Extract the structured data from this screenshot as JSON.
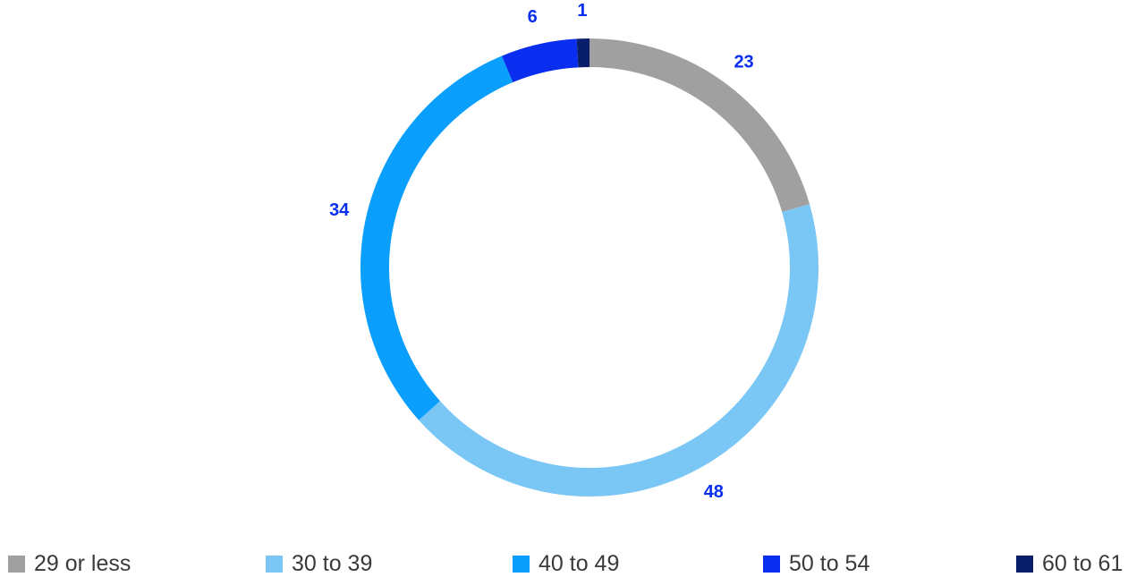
{
  "chart_data": {
    "type": "pie",
    "style": "donut",
    "title": "",
    "legend_position": "bottom",
    "start_angle_deg": 0,
    "direction": "clockwise",
    "slices": [
      {
        "label": "29 or less",
        "value": 23,
        "color": "#a0a0a0"
      },
      {
        "label": "30 to 39",
        "value": 48,
        "color": "#7ac6f5"
      },
      {
        "label": "40 to 49",
        "value": 34,
        "color": "#0a9efd"
      },
      {
        "label": "50 to 54",
        "value": 6,
        "color": "#0a2ef0"
      },
      {
        "label": "60 to 61",
        "value": 1,
        "color": "#0a1f6b"
      }
    ],
    "label_color": "#0a2ef0"
  }
}
